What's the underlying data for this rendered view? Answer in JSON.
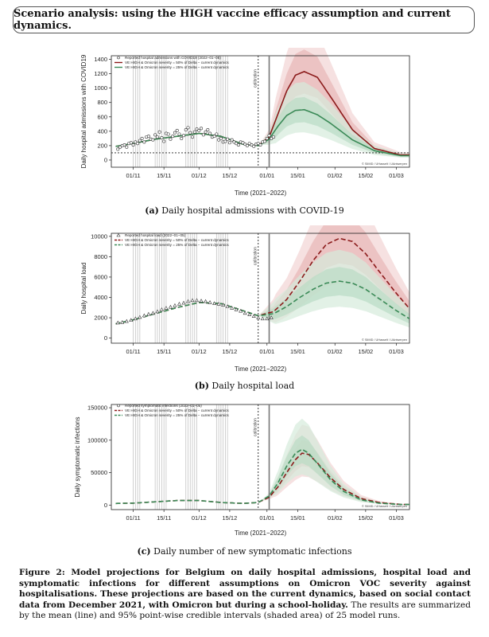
{
  "header_title": "Scenario analysis: using the HIGH vaccine efficacy assumption and current dynamics.",
  "colors": {
    "red": "#8b1a1a",
    "red_band_outer": "#f2d4d4",
    "red_band_inner": "#e8b7b7",
    "green": "#3a8a57",
    "green_band_outer": "#d6ebdc",
    "green_band_inner": "#b9dcc4"
  },
  "figure_caption": {
    "bold": "Figure 2: Model projections for Belgium on daily hospital admissions, hospital load and symptomatic infections for different assumptions on Omicron VOC severity against hospitalisations. These projections are based on the current dynamics, based on social contact data from December 2021, with Omicron but during a school-holiday.",
    "normal": " The results are summarized by the mean (line) and 95% point-wise credible intervals (shaded area) of 25 model runs."
  },
  "chart_data": [
    {
      "type": "line",
      "panel_label": "(a)",
      "caption": "Daily hospital admissions with COVID-19",
      "ylabel": "Daily hospital admissions with COVID19",
      "xlabel": "Time (2021−2022)",
      "ylim": [
        -100,
        1450
      ],
      "yticks": [
        0,
        200,
        400,
        600,
        800,
        1000,
        1200,
        1400
      ],
      "xticks": [
        "01/11",
        "15/11",
        "01/12",
        "15/12",
        "01/01",
        "15/01",
        "01/02",
        "15/02",
        "01/03"
      ],
      "calibration_label": "calibration",
      "reference_line_y": 100,
      "copyright": "© SIMID / UHasselt / UAntwerpen",
      "legend": [
        "Reported hospital admissions with COVID19 (2022−01−05)",
        "VE HIGH & Omicron severity = 50% of Delta − current dynamics",
        "VE HIGH & Omicron severity = 25% of Delta − current dynamics"
      ],
      "series": [
        {
          "name": "VE HIGH & Omicron severity = 50% of Delta − current dynamics",
          "x": [
            -8,
            0,
            10,
            20,
            30,
            40,
            50,
            57,
            62,
            66,
            70,
            74,
            78,
            84,
            90,
            100,
            110,
            122
          ],
          "y": [
            190,
            230,
            290,
            330,
            370,
            330,
            220,
            200,
            320,
            640,
            960,
            1180,
            1230,
            1150,
            880,
            420,
            160,
            70
          ]
        },
        {
          "name": "VE HIGH & Omicron severity = 25% of Delta − current dynamics",
          "x": [
            -8,
            0,
            10,
            20,
            30,
            40,
            50,
            57,
            62,
            66,
            70,
            74,
            78,
            84,
            90,
            100,
            110,
            122
          ],
          "y": [
            190,
            230,
            290,
            330,
            370,
            330,
            220,
            200,
            290,
            470,
            620,
            690,
            700,
            630,
            510,
            280,
            130,
            60
          ]
        }
      ],
      "reported": {
        "name": "Reported hospital admissions with COVID19 (2022−01−05)",
        "x": [
          -7,
          -6,
          -5,
          -4,
          -3,
          -2,
          -1,
          0,
          1,
          2,
          3,
          4,
          5,
          6,
          7,
          8,
          9,
          10,
          11,
          12,
          13,
          14,
          15,
          16,
          17,
          18,
          19,
          20,
          21,
          22,
          23,
          24,
          25,
          26,
          27,
          28,
          29,
          30,
          31,
          32,
          33,
          34,
          35,
          36,
          37,
          38,
          39,
          40,
          41,
          42,
          43,
          44,
          45,
          46,
          47,
          48,
          49,
          50,
          51,
          52,
          53,
          54,
          55,
          56,
          57,
          58,
          59,
          60,
          61,
          62,
          63,
          64
        ],
        "y": [
          150,
          180,
          200,
          210,
          180,
          230,
          240,
          210,
          250,
          230,
          270,
          300,
          250,
          320,
          330,
          290,
          280,
          350,
          320,
          390,
          310,
          260,
          370,
          360,
          290,
          330,
          380,
          410,
          360,
          300,
          340,
          420,
          450,
          380,
          320,
          390,
          430,
          410,
          440,
          350,
          390,
          420,
          370,
          320,
          330,
          360,
          280,
          300,
          250,
          260,
          290,
          240,
          280,
          250,
          230,
          210,
          250,
          240,
          220,
          200,
          230,
          210,
          190,
          220,
          230,
          210,
          250,
          260,
          300,
          340,
          300,
          320
        ]
      }
    },
    {
      "type": "line",
      "panel_label": "(b)",
      "caption": "Daily hospital load",
      "ylabel": "Daily hospital load",
      "xlabel": "Time (2021−2022)",
      "ylim": [
        -500,
        10300
      ],
      "yticks": [
        0,
        2000,
        4000,
        6000,
        8000,
        10000
      ],
      "xticks": [
        "01/11",
        "15/11",
        "01/12",
        "15/12",
        "01/01",
        "15/01",
        "01/02",
        "15/02",
        "01/03"
      ],
      "calibration_label": "calibration",
      "copyright": "© SIMID / UHasselt / UAntwerpen",
      "legend": [
        "Reported hospital load (2022−01−05)",
        "VE HIGH & Omicron severity = 50% of Delta − current dynamics",
        "VE HIGH & Omicron severity = 25% of Delta − current dynamics"
      ],
      "series": [
        {
          "name": "VE HIGH & Omicron severity = 50% of Delta − current dynamics",
          "x": [
            -8,
            0,
            10,
            20,
            30,
            40,
            50,
            57,
            64,
            70,
            76,
            82,
            88,
            94,
            100,
            106,
            112,
            120,
            126
          ],
          "y": [
            1400,
            1800,
            2400,
            3000,
            3500,
            3400,
            2700,
            2200,
            2600,
            3800,
            5600,
            7600,
            9200,
            9800,
            9500,
            8300,
            6600,
            4400,
            2900
          ]
        },
        {
          "name": "VE HIGH & Omicron severity = 25% of Delta − current dynamics",
          "x": [
            -8,
            0,
            10,
            20,
            30,
            40,
            50,
            57,
            64,
            70,
            76,
            82,
            88,
            94,
            100,
            106,
            112,
            120,
            126
          ],
          "y": [
            1400,
            1800,
            2400,
            3000,
            3500,
            3400,
            2700,
            2200,
            2400,
            3100,
            4000,
            4800,
            5400,
            5600,
            5400,
            4800,
            3900,
            2700,
            1900
          ]
        }
      ],
      "reported": {
        "name": "Reported hospital load (2022−01−05)",
        "x": [
          -7,
          -5,
          -3,
          -1,
          1,
          3,
          5,
          7,
          9,
          11,
          13,
          15,
          17,
          19,
          21,
          23,
          25,
          27,
          29,
          31,
          33,
          35,
          37,
          39,
          41,
          43,
          45,
          47,
          49,
          51,
          53,
          55,
          57,
          59,
          61,
          63
        ],
        "y": [
          1500,
          1550,
          1650,
          1750,
          1900,
          2050,
          2200,
          2350,
          2450,
          2600,
          2800,
          2950,
          3050,
          3200,
          3350,
          3450,
          3600,
          3700,
          3700,
          3650,
          3600,
          3500,
          3400,
          3350,
          3250,
          3100,
          2950,
          2800,
          2650,
          2450,
          2300,
          2150,
          2000,
          1900,
          1900,
          2000
        ]
      }
    },
    {
      "type": "line",
      "panel_label": "(c)",
      "caption": "Daily number of new symptomatic infections",
      "ylabel": "Daily symptomatic infections",
      "xlabel": "Time (2021−2022)",
      "ylim": [
        -7000,
        155000
      ],
      "yticks": [
        0,
        50000,
        100000,
        150000
      ],
      "xticks": [
        "01/11",
        "15/11",
        "01/12",
        "15/12",
        "01/01",
        "15/01",
        "01/02",
        "15/02",
        "01/03"
      ],
      "calibration_label": "calibration",
      "copyright": "© SIMID / UHasselt / UAntwerpen",
      "legend": [
        "Reported symptomatic infections (2022−01−05)",
        "VE HIGH & Omicron severity = 50% of Delta − current dynamics",
        "VE HIGH & Omicron severity = 25% of Delta − current dynamics"
      ],
      "series": [
        {
          "name": "VE HIGH & Omicron severity = 50% of Delta − current dynamics",
          "x": [
            -8,
            0,
            10,
            20,
            30,
            40,
            50,
            57,
            62,
            66,
            70,
            74,
            77,
            80,
            84,
            90,
            96,
            104,
            112,
            122
          ],
          "y": [
            2500,
            3000,
            5000,
            7000,
            7000,
            4000,
            2500,
            4000,
            12000,
            28000,
            50000,
            70000,
            80000,
            78000,
            65000,
            42000,
            24000,
            10000,
            4000,
            1000
          ]
        },
        {
          "name": "VE HIGH & Omicron severity = 25% of Delta − current dynamics",
          "x": [
            -8,
            0,
            10,
            20,
            30,
            40,
            50,
            57,
            62,
            66,
            70,
            74,
            77,
            80,
            84,
            90,
            96,
            104,
            112,
            122
          ],
          "y": [
            2500,
            3000,
            5000,
            7000,
            7000,
            4000,
            2500,
            4000,
            14000,
            34000,
            60000,
            80000,
            86000,
            80000,
            64000,
            39000,
            21000,
            8000,
            3000,
            800
          ]
        }
      ],
      "reported": {
        "name": "Reported symptomatic infections (2022−01−05)",
        "x": [],
        "y": []
      }
    }
  ]
}
